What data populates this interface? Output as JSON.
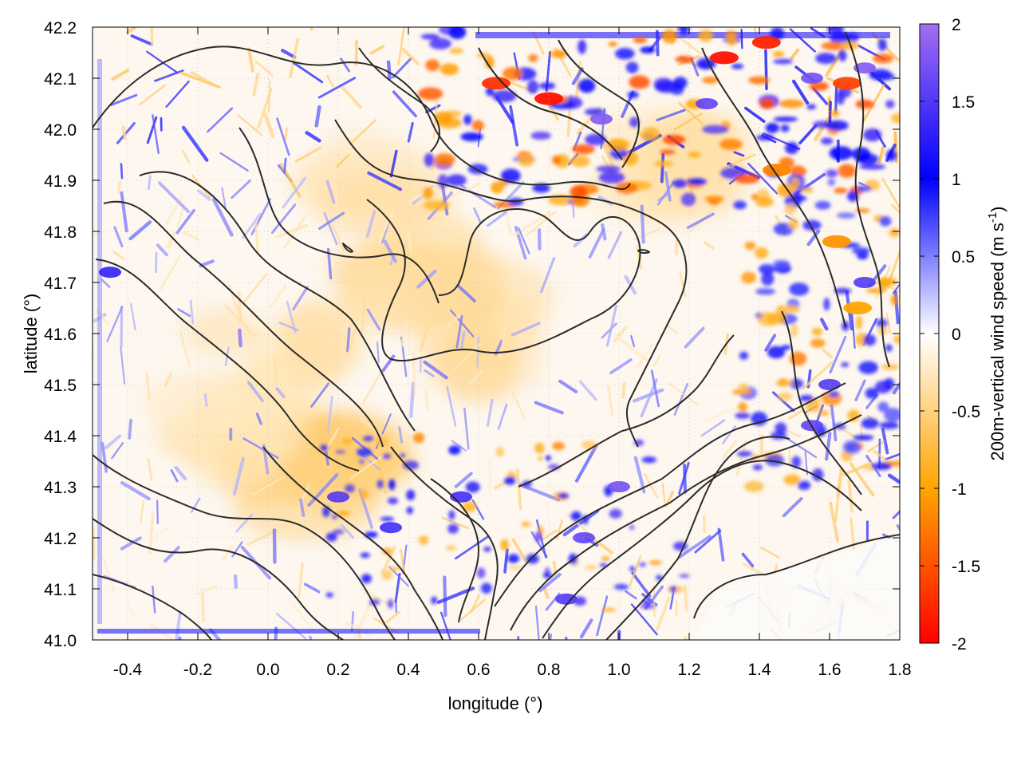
{
  "chart_data": {
    "type": "heatmap",
    "title": "",
    "xlabel": "longitude (°)",
    "ylabel": "latitude (°)",
    "xlim": [
      -0.5,
      1.8
    ],
    "ylim": [
      41.0,
      42.2
    ],
    "xticks": [
      -0.4,
      -0.2,
      0.0,
      0.2,
      0.4,
      0.6,
      0.8,
      1.0,
      1.2,
      1.4,
      1.6,
      1.8
    ],
    "xtick_labels": [
      "-0.4",
      "-0.2",
      "0.0",
      "0.2",
      "0.4",
      "0.6",
      "0.8",
      "1.0",
      "1.2",
      "1.4",
      "1.6",
      "1.8"
    ],
    "yticks": [
      41.0,
      41.1,
      41.2,
      41.3,
      41.4,
      41.5,
      41.6,
      41.7,
      41.8,
      41.9,
      42.0,
      42.1,
      42.2
    ],
    "ytick_labels": [
      "41.0",
      "41.1",
      "41.2",
      "41.3",
      "41.4",
      "41.5",
      "41.6",
      "41.7",
      "41.8",
      "41.9",
      "42.0",
      "42.1",
      "42.2"
    ],
    "grid": true,
    "colorbar": {
      "label": "200m-vertical wind speed (m s",
      "label_sup": "-1",
      "label_end": ")",
      "range": [
        -2,
        2
      ],
      "ticks": [
        2,
        1.5,
        1,
        0.5,
        0,
        -0.5,
        -1,
        -1.5,
        -2
      ],
      "tick_labels": [
        "2",
        "1.5",
        "1",
        "0.5",
        "0",
        "-0.5",
        "-1",
        "-1.5",
        "-2"
      ],
      "colors": {
        "neg_max": "#ff0000",
        "neg_mid": "#ffa500",
        "zero": "#ffffff",
        "pos_mid": "#0000ff",
        "pos_max": "#a36ff0"
      }
    },
    "features": {
      "strong_positive_cells": [
        {
          "lon": 0.95,
          "lat": 42.02,
          "v": 1.8
        },
        {
          "lon": 1.25,
          "lat": 42.05,
          "v": 1.6
        },
        {
          "lon": 1.55,
          "lat": 42.1,
          "v": 1.7
        },
        {
          "lon": 1.7,
          "lat": 42.12,
          "v": 1.8
        },
        {
          "lon": 1.0,
          "lat": 41.3,
          "v": 1.7
        },
        {
          "lon": 0.9,
          "lat": 41.2,
          "v": 1.6
        },
        {
          "lon": 0.85,
          "lat": 41.08,
          "v": 1.5
        },
        {
          "lon": 1.55,
          "lat": 41.42,
          "v": 1.6
        },
        {
          "lon": 1.6,
          "lat": 41.5,
          "v": 1.5
        },
        {
          "lon": 0.2,
          "lat": 41.28,
          "v": 1.5
        },
        {
          "lon": 0.35,
          "lat": 41.22,
          "v": 1.4
        },
        {
          "lon": 0.55,
          "lat": 41.28,
          "v": 1.4
        },
        {
          "lon": -0.45,
          "lat": 41.72,
          "v": 1.3
        },
        {
          "lon": 1.7,
          "lat": 41.7,
          "v": 1.5
        }
      ],
      "strong_negative_cells": [
        {
          "lon": 0.8,
          "lat": 42.06,
          "v": -1.9
        },
        {
          "lon": 0.65,
          "lat": 42.09,
          "v": -1.7
        },
        {
          "lon": 1.3,
          "lat": 42.14,
          "v": -1.9
        },
        {
          "lon": 1.42,
          "lat": 42.17,
          "v": -1.8
        },
        {
          "lon": 1.65,
          "lat": 42.09,
          "v": -1.6
        },
        {
          "lon": 1.45,
          "lat": 41.92,
          "v": -1.2
        },
        {
          "lon": 1.62,
          "lat": 41.78,
          "v": -1.1
        },
        {
          "lon": 1.68,
          "lat": 41.65,
          "v": -1.0
        }
      ],
      "broad_negative_regions": [
        {
          "lon": 0.15,
          "lat": 41.32,
          "v": -0.6
        },
        {
          "lon": -0.1,
          "lat": 41.45,
          "v": -0.4
        },
        {
          "lon": 0.6,
          "lat": 41.6,
          "v": -0.45
        },
        {
          "lon": 0.45,
          "lat": 41.72,
          "v": -0.4
        },
        {
          "lon": 0.3,
          "lat": 41.92,
          "v": -0.35
        },
        {
          "lon": 0.0,
          "lat": 41.55,
          "v": -0.35
        },
        {
          "lon": 1.2,
          "lat": 41.95,
          "v": -0.4
        }
      ]
    }
  }
}
